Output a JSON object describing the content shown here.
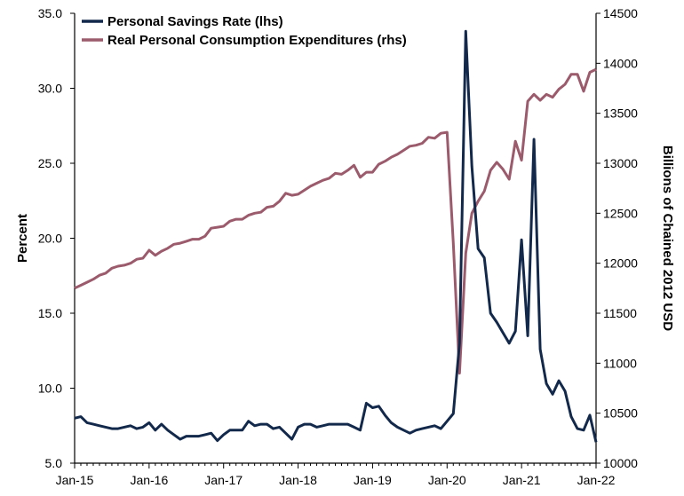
{
  "colors": {
    "savings": "#13294b",
    "pce": "#9b5b6c"
  },
  "chart_data": {
    "type": "line",
    "xlabel": "",
    "ylabel": "Percent",
    "y2label": "Billions of Chained 2012 USD",
    "ylim": [
      5.0,
      35.0
    ],
    "y2lim": [
      10000,
      14500
    ],
    "yticks": [
      "5.0",
      "10.0",
      "15.0",
      "20.0",
      "25.0",
      "30.0",
      "35.0"
    ],
    "y2ticks": [
      "10000",
      "10500",
      "11000",
      "11500",
      "12000",
      "12500",
      "13000",
      "13500",
      "14000",
      "14500"
    ],
    "xticks": [
      "Jan-15",
      "Jan-16",
      "Jan-17",
      "Jan-18",
      "Jan-19",
      "Jan-20",
      "Jan-21",
      "Jan-22"
    ],
    "x_start": "Jan-15",
    "x_end": "Jan-22",
    "legend": "top-left",
    "grid": false,
    "series": [
      {
        "name": "Personal Savings Rate (lhs)",
        "axis": "left",
        "x": [
          "2015-01",
          "2015-02",
          "2015-03",
          "2015-04",
          "2015-05",
          "2015-06",
          "2015-07",
          "2015-08",
          "2015-09",
          "2015-10",
          "2015-11",
          "2015-12",
          "2016-01",
          "2016-02",
          "2016-03",
          "2016-04",
          "2016-05",
          "2016-06",
          "2016-07",
          "2016-08",
          "2016-09",
          "2016-10",
          "2016-11",
          "2016-12",
          "2017-01",
          "2017-02",
          "2017-03",
          "2017-04",
          "2017-05",
          "2017-06",
          "2017-07",
          "2017-08",
          "2017-09",
          "2017-10",
          "2017-11",
          "2017-12",
          "2018-01",
          "2018-02",
          "2018-03",
          "2018-04",
          "2018-05",
          "2018-06",
          "2018-07",
          "2018-08",
          "2018-09",
          "2018-10",
          "2018-11",
          "2018-12",
          "2019-01",
          "2019-02",
          "2019-03",
          "2019-04",
          "2019-05",
          "2019-06",
          "2019-07",
          "2019-08",
          "2019-09",
          "2019-10",
          "2019-11",
          "2019-12",
          "2020-01",
          "2020-02",
          "2020-03",
          "2020-04",
          "2020-05",
          "2020-06",
          "2020-07",
          "2020-08",
          "2020-09",
          "2020-10",
          "2020-11",
          "2020-12",
          "2021-01",
          "2021-02",
          "2021-03",
          "2021-04",
          "2021-05",
          "2021-06",
          "2021-07",
          "2021-08",
          "2021-09",
          "2021-10",
          "2021-11",
          "2021-12",
          "2022-01"
        ],
        "values": [
          8.0,
          8.1,
          7.7,
          7.6,
          7.5,
          7.4,
          7.3,
          7.3,
          7.4,
          7.5,
          7.3,
          7.4,
          7.7,
          7.2,
          7.6,
          7.2,
          6.9,
          6.6,
          6.8,
          6.8,
          6.8,
          6.9,
          7.0,
          6.5,
          6.9,
          7.2,
          7.2,
          7.2,
          7.8,
          7.5,
          7.6,
          7.6,
          7.3,
          7.4,
          7.0,
          6.6,
          7.4,
          7.6,
          7.6,
          7.4,
          7.5,
          7.6,
          7.6,
          7.6,
          7.6,
          7.4,
          7.2,
          9.0,
          8.7,
          8.8,
          8.2,
          7.7,
          7.4,
          7.2,
          7.0,
          7.2,
          7.3,
          7.4,
          7.5,
          7.3,
          7.8,
          8.3,
          13.0,
          33.8,
          24.8,
          19.3,
          18.7,
          15.0,
          14.4,
          13.7,
          13.0,
          13.8,
          19.9,
          13.5,
          26.6,
          12.6,
          10.3,
          9.6,
          10.5,
          9.8,
          8.1,
          7.3,
          7.2,
          8.2,
          6.4
        ]
      },
      {
        "name": "Real Personal Consumption Expenditures (rhs)",
        "axis": "right",
        "x": [
          "2015-01",
          "2015-02",
          "2015-03",
          "2015-04",
          "2015-05",
          "2015-06",
          "2015-07",
          "2015-08",
          "2015-09",
          "2015-10",
          "2015-11",
          "2015-12",
          "2016-01",
          "2016-02",
          "2016-03",
          "2016-04",
          "2016-05",
          "2016-06",
          "2016-07",
          "2016-08",
          "2016-09",
          "2016-10",
          "2016-11",
          "2016-12",
          "2017-01",
          "2017-02",
          "2017-03",
          "2017-04",
          "2017-05",
          "2017-06",
          "2017-07",
          "2017-08",
          "2017-09",
          "2017-10",
          "2017-11",
          "2017-12",
          "2018-01",
          "2018-02",
          "2018-03",
          "2018-04",
          "2018-05",
          "2018-06",
          "2018-07",
          "2018-08",
          "2018-09",
          "2018-10",
          "2018-11",
          "2018-12",
          "2019-01",
          "2019-02",
          "2019-03",
          "2019-04",
          "2019-05",
          "2019-06",
          "2019-07",
          "2019-08",
          "2019-09",
          "2019-10",
          "2019-11",
          "2019-12",
          "2020-01",
          "2020-02",
          "2020-03",
          "2020-04",
          "2020-05",
          "2020-06",
          "2020-07",
          "2020-08",
          "2020-09",
          "2020-10",
          "2020-11",
          "2020-12",
          "2021-01",
          "2021-02",
          "2021-03",
          "2021-04",
          "2021-05",
          "2021-06",
          "2021-07",
          "2021-08",
          "2021-09",
          "2021-10",
          "2021-11",
          "2021-12",
          "2022-01"
        ],
        "values": [
          11750,
          11780,
          11810,
          11840,
          11880,
          11900,
          11950,
          11970,
          11980,
          12000,
          12040,
          12050,
          12130,
          12080,
          12120,
          12150,
          12190,
          12200,
          12220,
          12240,
          12240,
          12270,
          12350,
          12360,
          12370,
          12420,
          12440,
          12440,
          12480,
          12500,
          12510,
          12560,
          12570,
          12620,
          12700,
          12680,
          12690,
          12730,
          12770,
          12800,
          12830,
          12850,
          12900,
          12890,
          12930,
          12980,
          12860,
          12910,
          12910,
          12990,
          13020,
          13060,
          13090,
          13130,
          13170,
          13180,
          13200,
          13260,
          13250,
          13300,
          13310,
          12200,
          10900,
          12100,
          12500,
          12620,
          12720,
          12930,
          13010,
          12940,
          12840,
          13220,
          13030,
          13620,
          13690,
          13630,
          13690,
          13660,
          13740,
          13790,
          13890,
          13890,
          13720,
          13910,
          13940
        ]
      }
    ]
  }
}
